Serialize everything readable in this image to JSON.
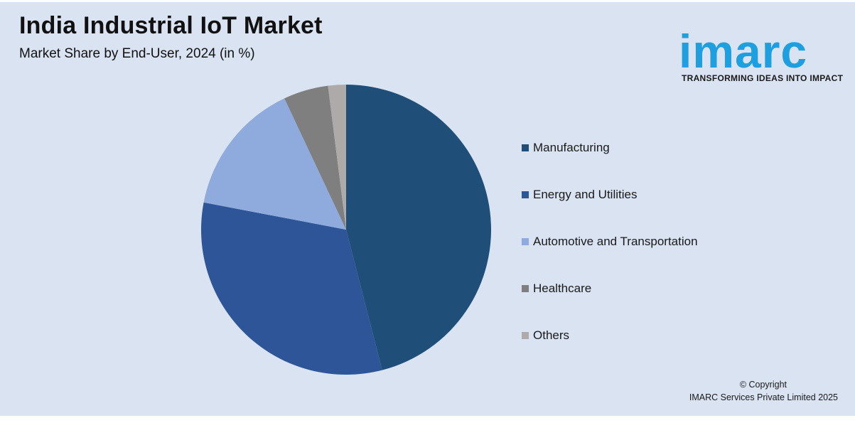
{
  "header": {
    "title": "India Industrial IoT Market",
    "subtitle": "Market Share by End-User, 2024 (in %)"
  },
  "logo": {
    "wordmark": "imarc",
    "tagline": "TRANSFORMING IDEAS INTO IMPACT",
    "color": "#1e9fe0"
  },
  "footer": {
    "copyright_line1": "© Copyright",
    "copyright_line2": "IMARC Services Private Limited 2025"
  },
  "colors": {
    "background": "#dae3f2"
  },
  "chart_data": {
    "type": "pie",
    "title": "India Industrial IoT Market",
    "subtitle": "Market Share by End-User, 2024 (in %)",
    "legend_position": "right",
    "start_angle_deg": 0,
    "direction": "clockwise",
    "slices": [
      {
        "label": "Manufacturing",
        "value": 46,
        "color": "#1f4e79"
      },
      {
        "label": "Energy and Utilities",
        "value": 32,
        "color": "#2e5597"
      },
      {
        "label": "Automotive and Transportation",
        "value": 15,
        "color": "#8faadc"
      },
      {
        "label": "Healthcare",
        "value": 5,
        "color": "#7f7f7f"
      },
      {
        "label": "Others",
        "value": 2,
        "color": "#aeaaaa"
      }
    ]
  }
}
